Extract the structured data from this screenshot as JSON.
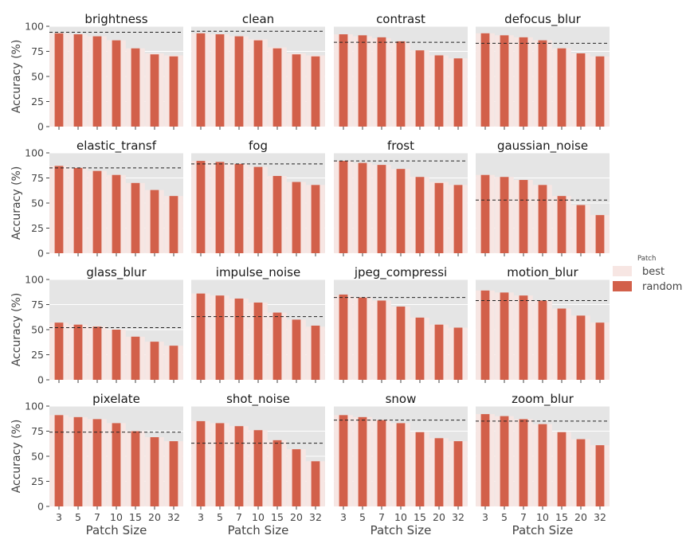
{
  "chart_data": {
    "type": "bar",
    "layout": "facet-grid 4x4",
    "xlabel": "Patch Size",
    "ylabel": "Accuracy (%)",
    "categories": [
      "3",
      "5",
      "7",
      "10",
      "15",
      "20",
      "32"
    ],
    "yticks": [
      0,
      25,
      50,
      75,
      100
    ],
    "ylim": [
      0,
      100
    ],
    "grid": true,
    "legend": {
      "title": "Patch",
      "placement": "right",
      "entries": [
        {
          "name": "best",
          "color": "#f7e6e3"
        },
        {
          "name": "random",
          "color": "#d2604a"
        }
      ]
    },
    "panel_background": "#e5e5e5",
    "panels": [
      {
        "title": "brightness",
        "best": [
          93,
          92,
          90,
          86,
          78,
          73,
          71
        ],
        "random": [
          93,
          92,
          90,
          86,
          78,
          72,
          70
        ],
        "ref": 94
      },
      {
        "title": "clean",
        "best": [
          93,
          92,
          90,
          87,
          79,
          73,
          71
        ],
        "random": [
          93,
          92,
          90,
          86,
          78,
          72,
          70
        ],
        "ref": 95
      },
      {
        "title": "contrast",
        "best": [
          92,
          90,
          88,
          84,
          76,
          71,
          68
        ],
        "random": [
          92,
          91,
          89,
          85,
          76,
          71,
          68
        ],
        "ref": 84
      },
      {
        "title": "defocus_blur",
        "best": [
          93,
          91,
          89,
          86,
          78,
          73,
          70
        ],
        "random": [
          93,
          91,
          89,
          86,
          78,
          73,
          70
        ],
        "ref": 83
      },
      {
        "title": "elastic_transf",
        "best": [
          87,
          85,
          82,
          78,
          70,
          63,
          57
        ],
        "random": [
          87,
          85,
          82,
          78,
          70,
          63,
          57
        ],
        "ref": 85
      },
      {
        "title": "fog",
        "best": [
          92,
          90,
          89,
          86,
          77,
          71,
          68
        ],
        "random": [
          92,
          91,
          89,
          86,
          77,
          71,
          68
        ],
        "ref": 89
      },
      {
        "title": "frost",
        "best": [
          92,
          90,
          88,
          84,
          76,
          71,
          68
        ],
        "random": [
          92,
          90,
          88,
          84,
          76,
          70,
          68
        ],
        "ref": 92
      },
      {
        "title": "gaussian_noise",
        "best": [
          78,
          76,
          73,
          68,
          57,
          48,
          38
        ],
        "random": [
          78,
          76,
          73,
          68,
          57,
          48,
          38
        ],
        "ref": 53
      },
      {
        "title": "glass_blur",
        "best": [
          57,
          55,
          53,
          50,
          43,
          38,
          34
        ],
        "random": [
          57,
          55,
          53,
          50,
          43,
          38,
          34
        ],
        "ref": 52
      },
      {
        "title": "impulse_noise",
        "best": [
          86,
          84,
          81,
          77,
          67,
          60,
          53
        ],
        "random": [
          86,
          84,
          81,
          77,
          67,
          60,
          54
        ],
        "ref": 63
      },
      {
        "title": "jpeg_compressi",
        "best": [
          84,
          82,
          79,
          73,
          62,
          55,
          52
        ],
        "random": [
          85,
          82,
          79,
          73,
          62,
          55,
          52
        ],
        "ref": 82
      },
      {
        "title": "motion_blur",
        "best": [
          89,
          87,
          84,
          79,
          71,
          64,
          57
        ],
        "random": [
          89,
          87,
          84,
          79,
          71,
          64,
          57
        ],
        "ref": 79
      },
      {
        "title": "pixelate",
        "best": [
          91,
          89,
          87,
          83,
          75,
          69,
          65
        ],
        "random": [
          91,
          89,
          87,
          83,
          75,
          69,
          65
        ],
        "ref": 74
      },
      {
        "title": "shot_noise",
        "best": [
          85,
          83,
          80,
          76,
          66,
          57,
          45
        ],
        "random": [
          85,
          83,
          80,
          76,
          66,
          57,
          45
        ],
        "ref": 63
      },
      {
        "title": "snow",
        "best": [
          91,
          89,
          86,
          83,
          74,
          68,
          65
        ],
        "random": [
          91,
          89,
          86,
          83,
          74,
          68,
          65
        ],
        "ref": 86
      },
      {
        "title": "zoom_blur",
        "best": [
          92,
          90,
          87,
          82,
          74,
          67,
          61
        ],
        "random": [
          92,
          90,
          87,
          82,
          74,
          67,
          61
        ],
        "ref": 85
      }
    ]
  }
}
